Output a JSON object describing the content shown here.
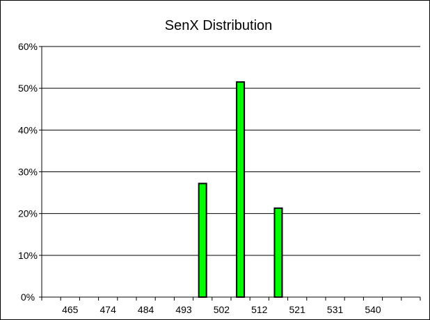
{
  "chart_data": {
    "type": "bar",
    "title": "SenX  Distribution",
    "xlabel": "",
    "ylabel": "",
    "x_ticks": [
      "465",
      "474",
      "484",
      "493",
      "502",
      "512",
      "521",
      "531",
      "540"
    ],
    "categories": [
      "",
      "465",
      "",
      "474",
      "",
      "484",
      "",
      "493",
      "",
      "502",
      "",
      "512",
      "",
      "521",
      "",
      "531",
      "",
      "540",
      "",
      ""
    ],
    "values": [
      0,
      0,
      0,
      0,
      0,
      0,
      0,
      0,
      0.272,
      0,
      0.515,
      0,
      0.213,
      0,
      0,
      0,
      0,
      0,
      0,
      0
    ],
    "y_ticks": [
      "0%",
      "10%",
      "20%",
      "30%",
      "40%",
      "50%",
      "60%"
    ],
    "ylim": [
      0,
      0.6
    ],
    "grid": true,
    "legend": "none",
    "bar_color": "#00ff00",
    "bar_edge_color": "#000000"
  }
}
